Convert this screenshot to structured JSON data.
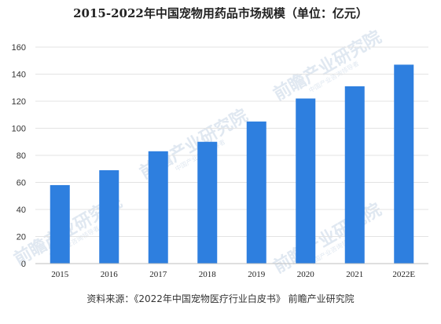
{
  "chart_data": {
    "type": "bar",
    "title": "2015-2022年中国宠物用药品市场规模（单位：亿元）",
    "categories": [
      "2015",
      "2016",
      "2017",
      "2018",
      "2019",
      "2020",
      "2021",
      "2022E"
    ],
    "values": [
      58,
      69,
      83,
      90,
      105,
      122,
      131,
      147
    ],
    "ylim": [
      0,
      160
    ],
    "yticks": [
      0,
      20,
      40,
      60,
      80,
      100,
      120,
      140,
      160
    ],
    "grid": true,
    "bar_color": "#2e7fdf",
    "xlabel": "",
    "ylabel": ""
  },
  "source": "资料来源：《2022年中国宠物医疗行业白皮书》 前瞻产业研究院",
  "watermark": {
    "text": "前瞻产业研究院",
    "subtext": "中国产业咨询领导者"
  }
}
